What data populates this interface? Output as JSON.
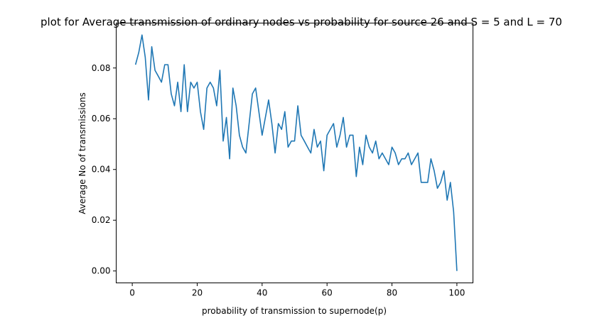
{
  "chart_data": {
    "type": "line",
    "title": "plot for Average transmission of ordinary nodes vs probability for source 26 and S = 5 and L = 70",
    "xlabel": "probability of transmission to supernode(p)",
    "ylabel": "Average No of transmissions",
    "xlim": [
      -4.95,
      104.95
    ],
    "ylim": [
      -0.0047,
      0.0977
    ],
    "xticks": [
      0,
      20,
      40,
      60,
      80,
      100
    ],
    "xtick_labels": [
      "0",
      "20",
      "40",
      "60",
      "80",
      "100"
    ],
    "yticks": [
      0.0,
      0.02,
      0.04,
      0.06,
      0.08
    ],
    "ytick_labels": [
      "0.00",
      "0.02",
      "0.04",
      "0.06",
      "0.08"
    ],
    "grid": false,
    "color": "#1f77b4",
    "series": [
      {
        "x": [
          1,
          2,
          3,
          4,
          5,
          6,
          7,
          8,
          9,
          10,
          11,
          12,
          13,
          14,
          15,
          16,
          17,
          18,
          19,
          20,
          21,
          22,
          23,
          24,
          25,
          26,
          27,
          28,
          29,
          30,
          31,
          32,
          33,
          34,
          35,
          36,
          37,
          38,
          39,
          40,
          41,
          42,
          43,
          44,
          45,
          46,
          47,
          48,
          49,
          50,
          51,
          52,
          53,
          54,
          55,
          56,
          57,
          58,
          59,
          60,
          61,
          62,
          63,
          64,
          65,
          66,
          67,
          68,
          69,
          70,
          71,
          72,
          73,
          74,
          75,
          76,
          77,
          78,
          79,
          80,
          81,
          82,
          83,
          84,
          85,
          86,
          87,
          88,
          89,
          90,
          91,
          92,
          93,
          94,
          95,
          96,
          97,
          98,
          99,
          100
        ],
        "values": [
          0.0813,
          0.0861,
          0.093,
          0.0842,
          0.0674,
          0.0884,
          0.0791,
          0.0768,
          0.0744,
          0.0813,
          0.0813,
          0.0698,
          0.0651,
          0.0744,
          0.0628,
          0.0813,
          0.0628,
          0.0744,
          0.0721,
          0.0744,
          0.0628,
          0.0558,
          0.0721,
          0.0744,
          0.0721,
          0.0651,
          0.0791,
          0.0512,
          0.0605,
          0.0442,
          0.0721,
          0.0651,
          0.0535,
          0.0488,
          0.0465,
          0.0581,
          0.0698,
          0.0721,
          0.0628,
          0.0535,
          0.0605,
          0.0674,
          0.0581,
          0.0465,
          0.0581,
          0.0558,
          0.0628,
          0.0488,
          0.0512,
          0.0512,
          0.0651,
          0.0535,
          0.0512,
          0.0488,
          0.0465,
          0.0558,
          0.0488,
          0.0512,
          0.0395,
          0.0535,
          0.0558,
          0.0581,
          0.0488,
          0.0535,
          0.0605,
          0.0488,
          0.0535,
          0.0535,
          0.0372,
          0.0488,
          0.0419,
          0.0535,
          0.0488,
          0.0465,
          0.0512,
          0.0442,
          0.0465,
          0.0442,
          0.0419,
          0.0488,
          0.0465,
          0.0419,
          0.0442,
          0.0442,
          0.0465,
          0.0419,
          0.0442,
          0.0465,
          0.0349,
          0.0349,
          0.0349,
          0.0442,
          0.0395,
          0.0326,
          0.0349,
          0.0395,
          0.0279,
          0.0349,
          0.0233,
          0.0
        ]
      }
    ]
  }
}
